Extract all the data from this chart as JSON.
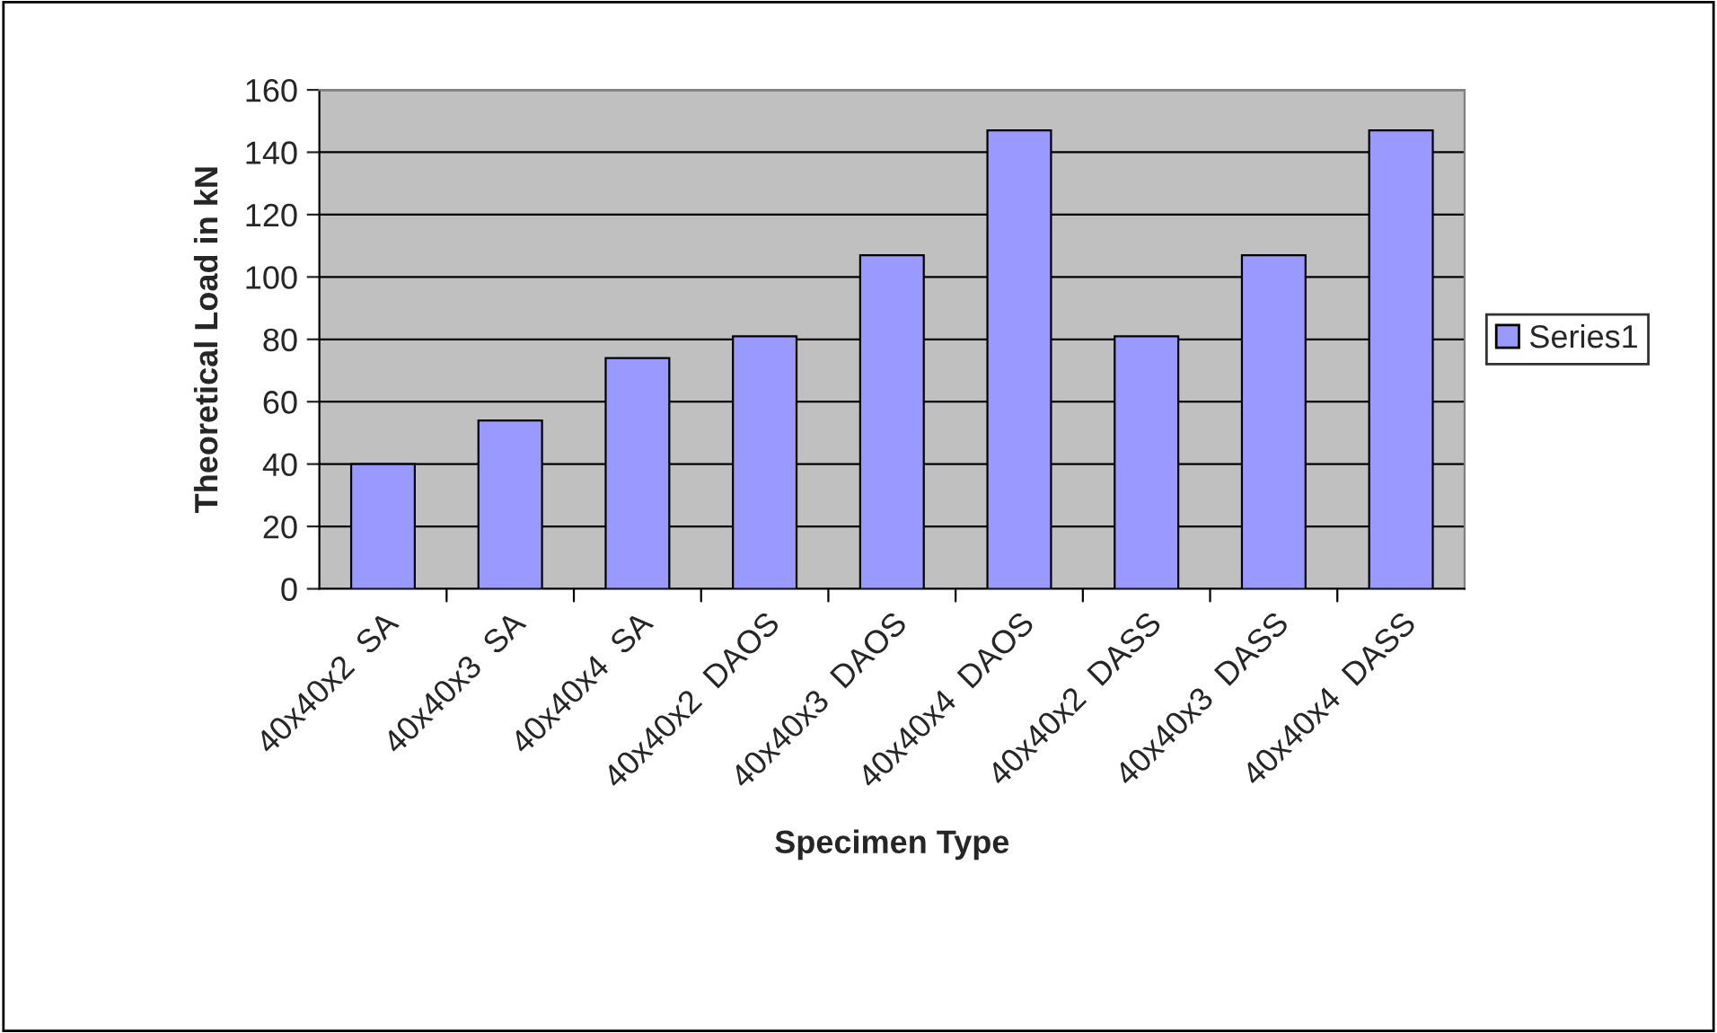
{
  "chart_data": {
    "type": "bar",
    "xlabel": "Specimen Type",
    "ylabel": "Theoretical Load in kN",
    "categories": [
      "40x40x2  SA",
      "40x40x3  SA",
      "40x40x4  SA",
      "40x40x2  DAOS",
      "40x40x3  DAOS",
      "40x40x4  DAOS",
      "40x40x2  DASS",
      "40x40x3  DASS",
      "40x40x4  DASS"
    ],
    "series": [
      {
        "name": "Series1",
        "color": "#9999ff",
        "values": [
          40,
          54,
          74,
          81,
          107,
          147,
          81,
          107,
          147
        ]
      }
    ],
    "ylim": [
      0,
      160
    ],
    "yticks": [
      0,
      20,
      40,
      60,
      80,
      100,
      120,
      140,
      160
    ],
    "grid": "y",
    "legend": "right"
  }
}
